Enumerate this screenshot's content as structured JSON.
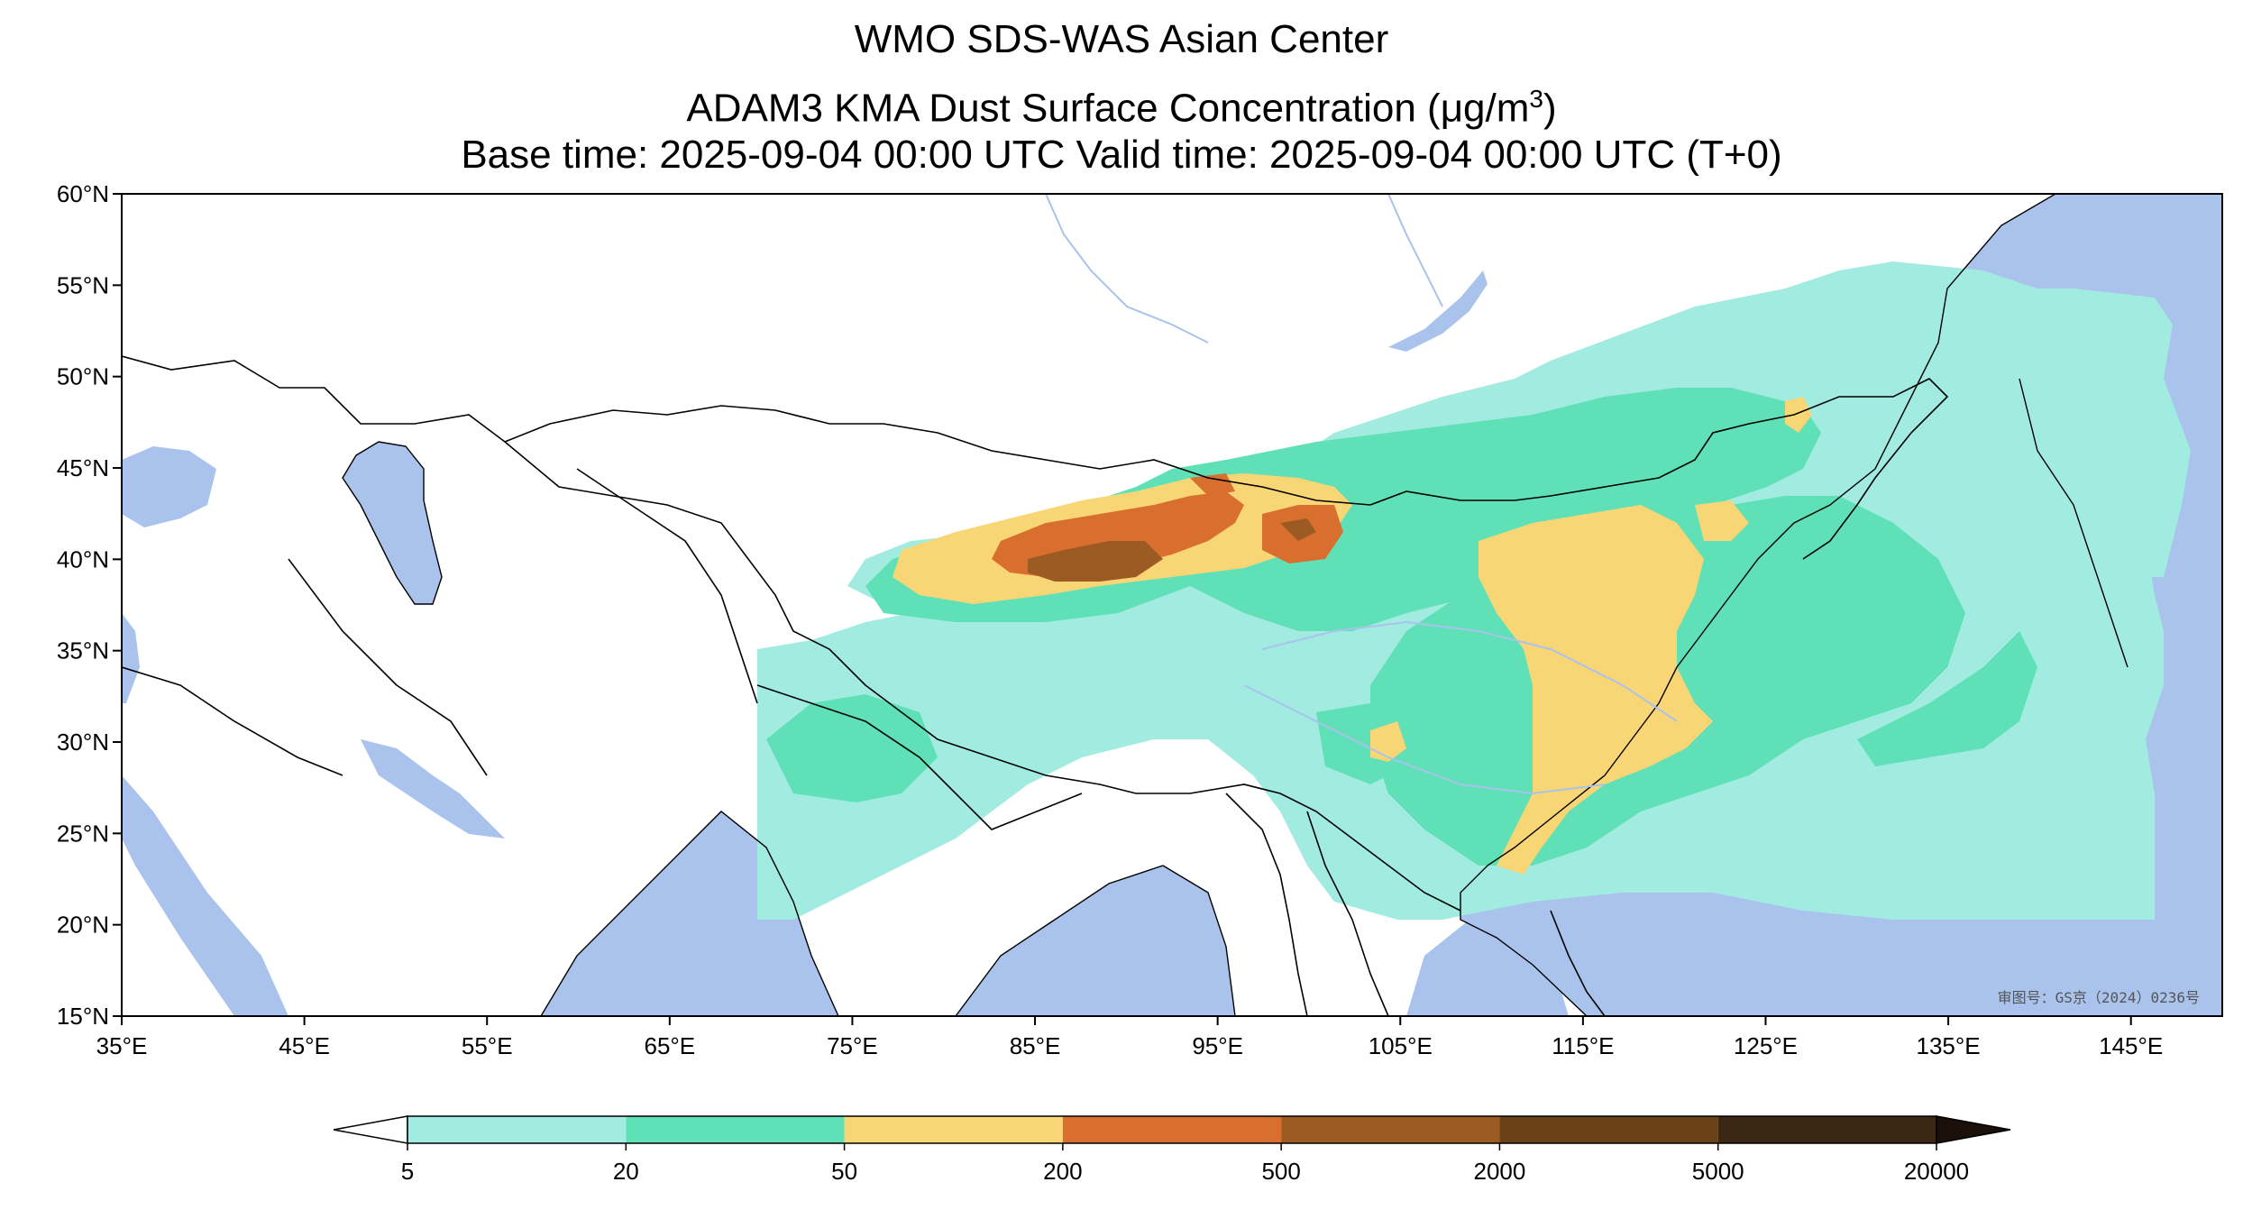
{
  "title": {
    "line1": "WMO SDS-WAS Asian Center",
    "line2_main": "ADAM3 KMA Dust Surface Concentration (",
    "line2_unit_mu": "μ",
    "line2_unit_rest": "g/m",
    "line2_unit_sup": "3",
    "line2_close": ")",
    "line3": "Base time: 2025-09-04 00:00 UTC Valid time: 2025-09-04 00:00 UTC (T+0)"
  },
  "map": {
    "lon_range": [
      35,
      150
    ],
    "lat_range": [
      15,
      60
    ],
    "lat_ticks": [
      "60°N",
      "55°N",
      "50°N",
      "45°N",
      "40°N",
      "35°N",
      "30°N",
      "25°N",
      "20°N",
      "15°N"
    ],
    "lon_ticks": [
      "35°E",
      "45°E",
      "55°E",
      "65°E",
      "75°E",
      "85°E",
      "95°E",
      "105°E",
      "115°E",
      "125°E",
      "135°E",
      "145°E"
    ],
    "approval_number": "审图号：GS京（2024）0236号",
    "colors": {
      "ocean": "#a9c3ec",
      "land": "#ffffff",
      "border": "#000000",
      "river": "#a9c3ec"
    }
  },
  "colorbar": {
    "labels": [
      "5",
      "20",
      "50",
      "200",
      "500",
      "2000",
      "5000",
      "20000"
    ],
    "colors": [
      "#ffffff",
      "#a1ebe1",
      "#5fe0b6",
      "#f9d675",
      "#d96f2e",
      "#9c5b23",
      "#6a4018",
      "#3c2614",
      "#1b1009"
    ]
  }
}
